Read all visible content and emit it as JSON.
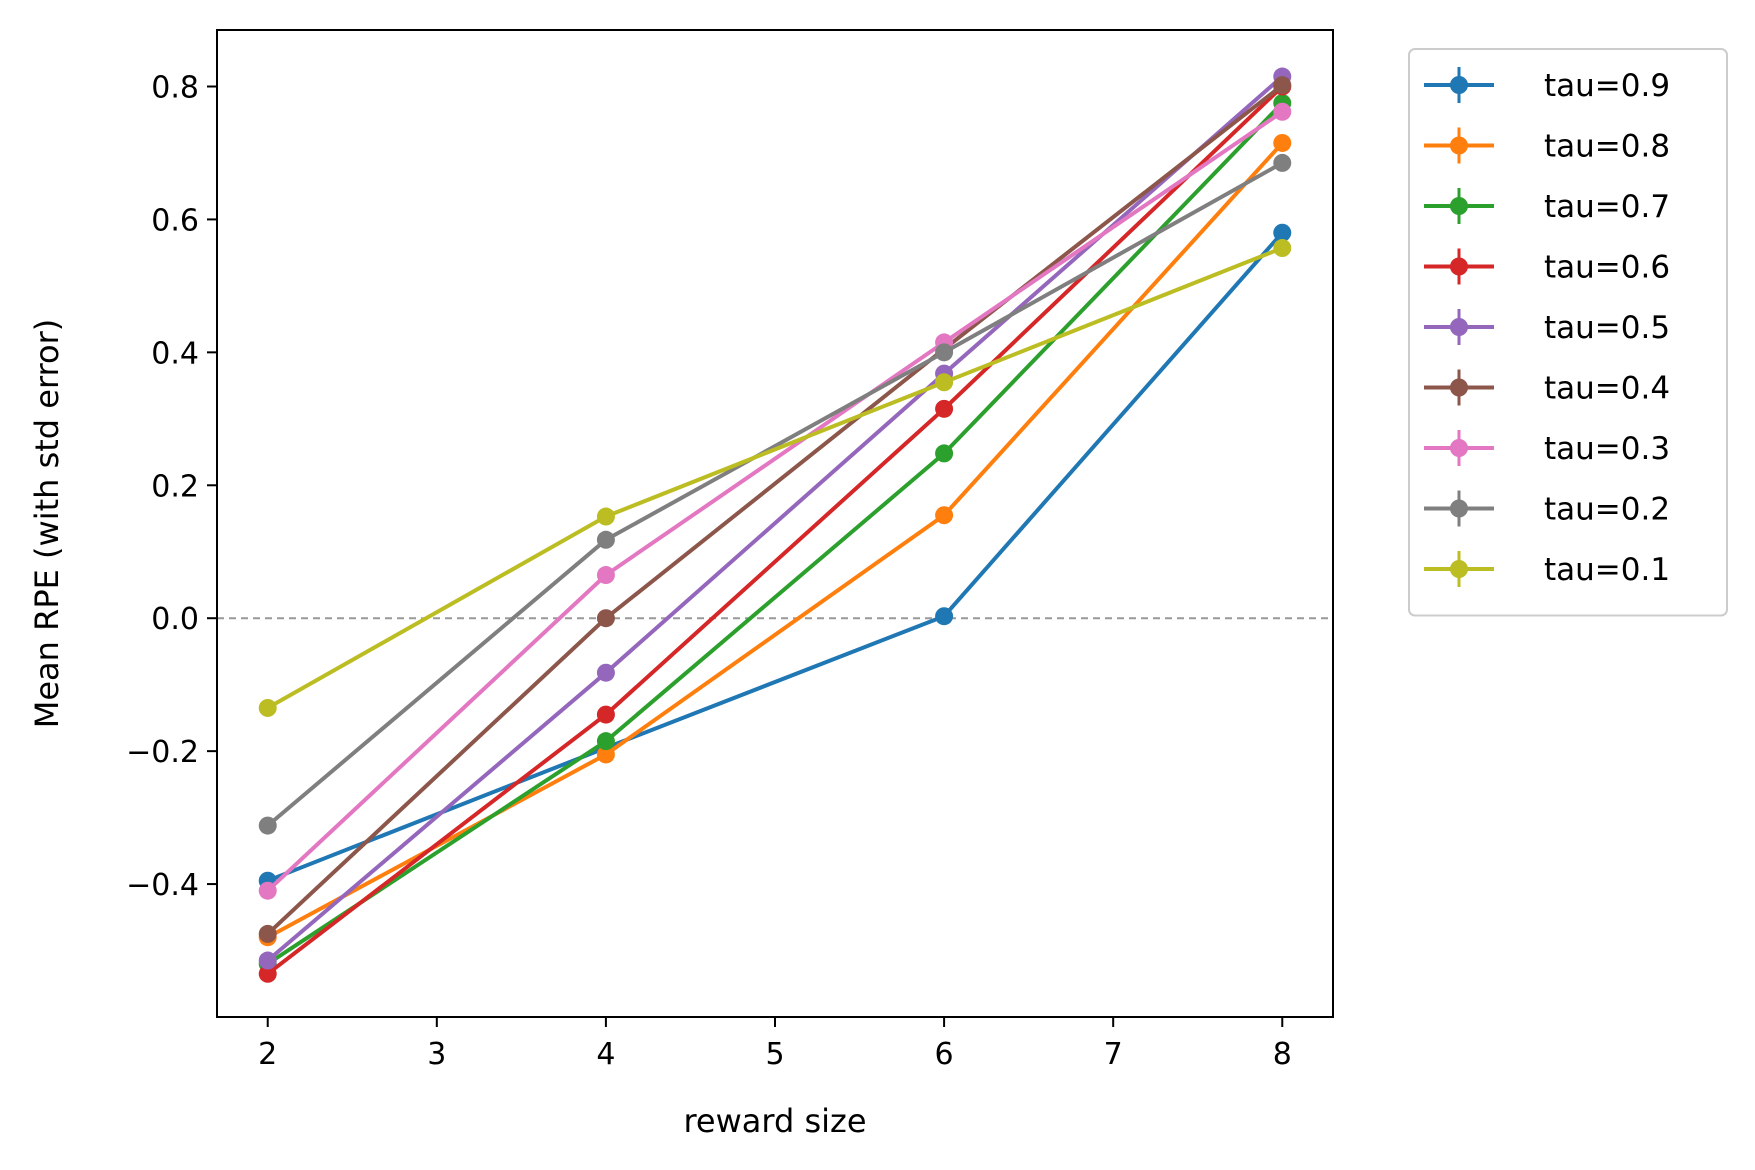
{
  "chart_data": {
    "type": "line",
    "xlabel": "reward size",
    "ylabel": "Mean RPE (with std error)",
    "x": [
      2,
      4,
      6,
      8
    ],
    "xlim": [
      1.7,
      8.3
    ],
    "ylim": [
      -0.6,
      0.885
    ],
    "xticks": [
      2,
      3,
      4,
      5,
      6,
      7,
      8
    ],
    "yticks": [
      -0.4,
      -0.2,
      0.0,
      0.2,
      0.4,
      0.6,
      0.8
    ],
    "ytick_labels": [
      "−0.4",
      "−0.2",
      "0.0",
      "0.2",
      "0.4",
      "0.6",
      "0.8"
    ],
    "reference_line": {
      "y": 0.0,
      "style": "dashed",
      "color": "#999999"
    },
    "grid": false,
    "legend_position": "outside-right-top",
    "markers": "circle",
    "error_bars": true,
    "series": [
      {
        "name": "tau=0.9",
        "color": "#1f77b4",
        "values": [
          -0.395,
          -0.195,
          0.003,
          0.58
        ]
      },
      {
        "name": "tau=0.8",
        "color": "#ff7f0e",
        "values": [
          -0.48,
          -0.205,
          0.155,
          0.715
        ]
      },
      {
        "name": "tau=0.7",
        "color": "#2ca02c",
        "values": [
          -0.52,
          -0.185,
          0.248,
          0.775
        ]
      },
      {
        "name": "tau=0.6",
        "color": "#d62728",
        "values": [
          -0.535,
          -0.145,
          0.315,
          0.8
        ]
      },
      {
        "name": "tau=0.5",
        "color": "#9467bd",
        "values": [
          -0.515,
          -0.082,
          0.368,
          0.815
        ]
      },
      {
        "name": "tau=0.4",
        "color": "#8c564b",
        "values": [
          -0.475,
          0.0,
          0.405,
          0.802
        ]
      },
      {
        "name": "tau=0.3",
        "color": "#e377c2",
        "values": [
          -0.41,
          0.065,
          0.415,
          0.762
        ]
      },
      {
        "name": "tau=0.2",
        "color": "#7f7f7f",
        "values": [
          -0.312,
          0.118,
          0.4,
          0.685
        ]
      },
      {
        "name": "tau=0.1",
        "color": "#bcbd22",
        "values": [
          -0.135,
          0.153,
          0.355,
          0.557
        ]
      }
    ]
  }
}
